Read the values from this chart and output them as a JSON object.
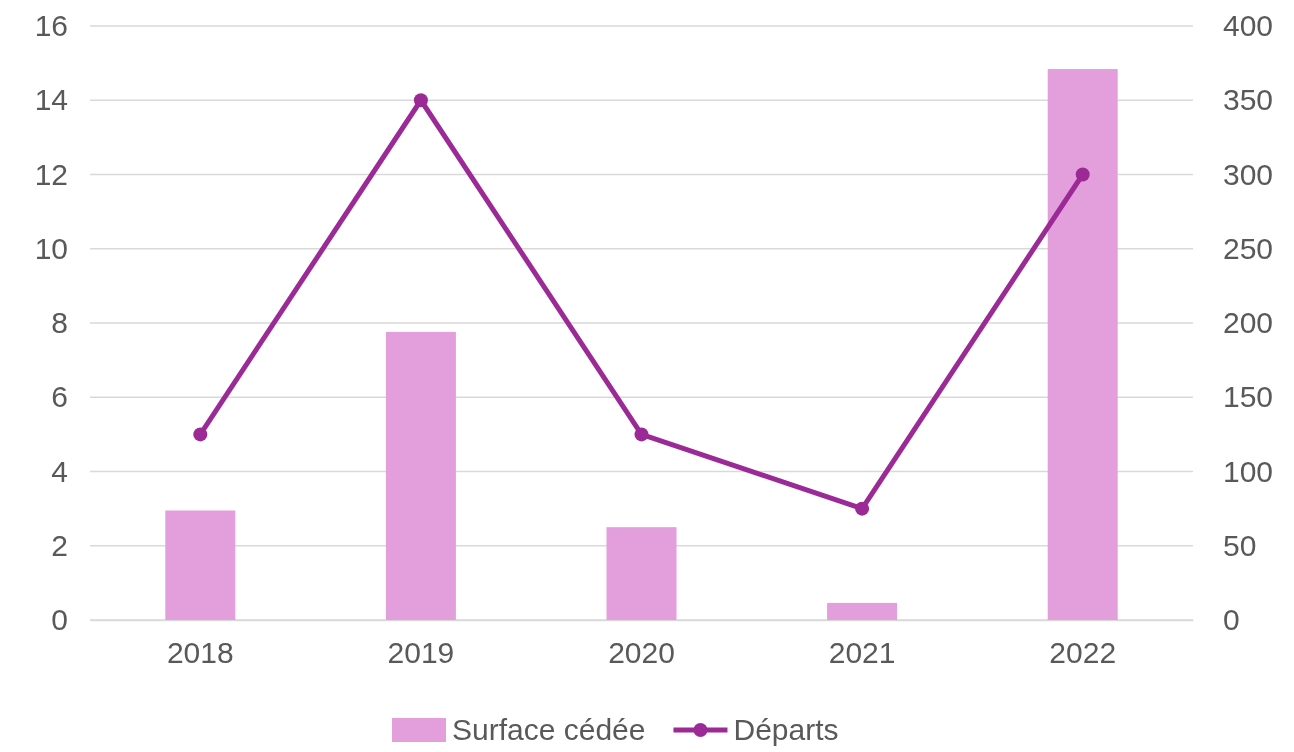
{
  "chart_data": {
    "type": "bar",
    "categories": [
      "2018",
      "2019",
      "2020",
      "2021",
      "2022"
    ],
    "series": [
      {
        "name": "Surface cédée",
        "color": "#e39edc",
        "values": [
          2.95,
          7.76,
          2.5,
          0.46,
          14.84
        ]
      },
      {
        "name": "Départs",
        "type": "line",
        "axis": "y2",
        "color": "#9b2a96",
        "values": [
          125,
          350,
          125,
          75,
          300
        ]
      }
    ],
    "ylim": [
      0,
      16
    ],
    "yticks": [
      0,
      2,
      4,
      6,
      8,
      10,
      12,
      14,
      16
    ],
    "y2lim": [
      0,
      400
    ],
    "y2ticks": [
      0,
      50,
      100,
      150,
      200,
      250,
      300,
      350,
      400
    ],
    "grid": "y",
    "legend": "bottom",
    "marker": "circle"
  }
}
